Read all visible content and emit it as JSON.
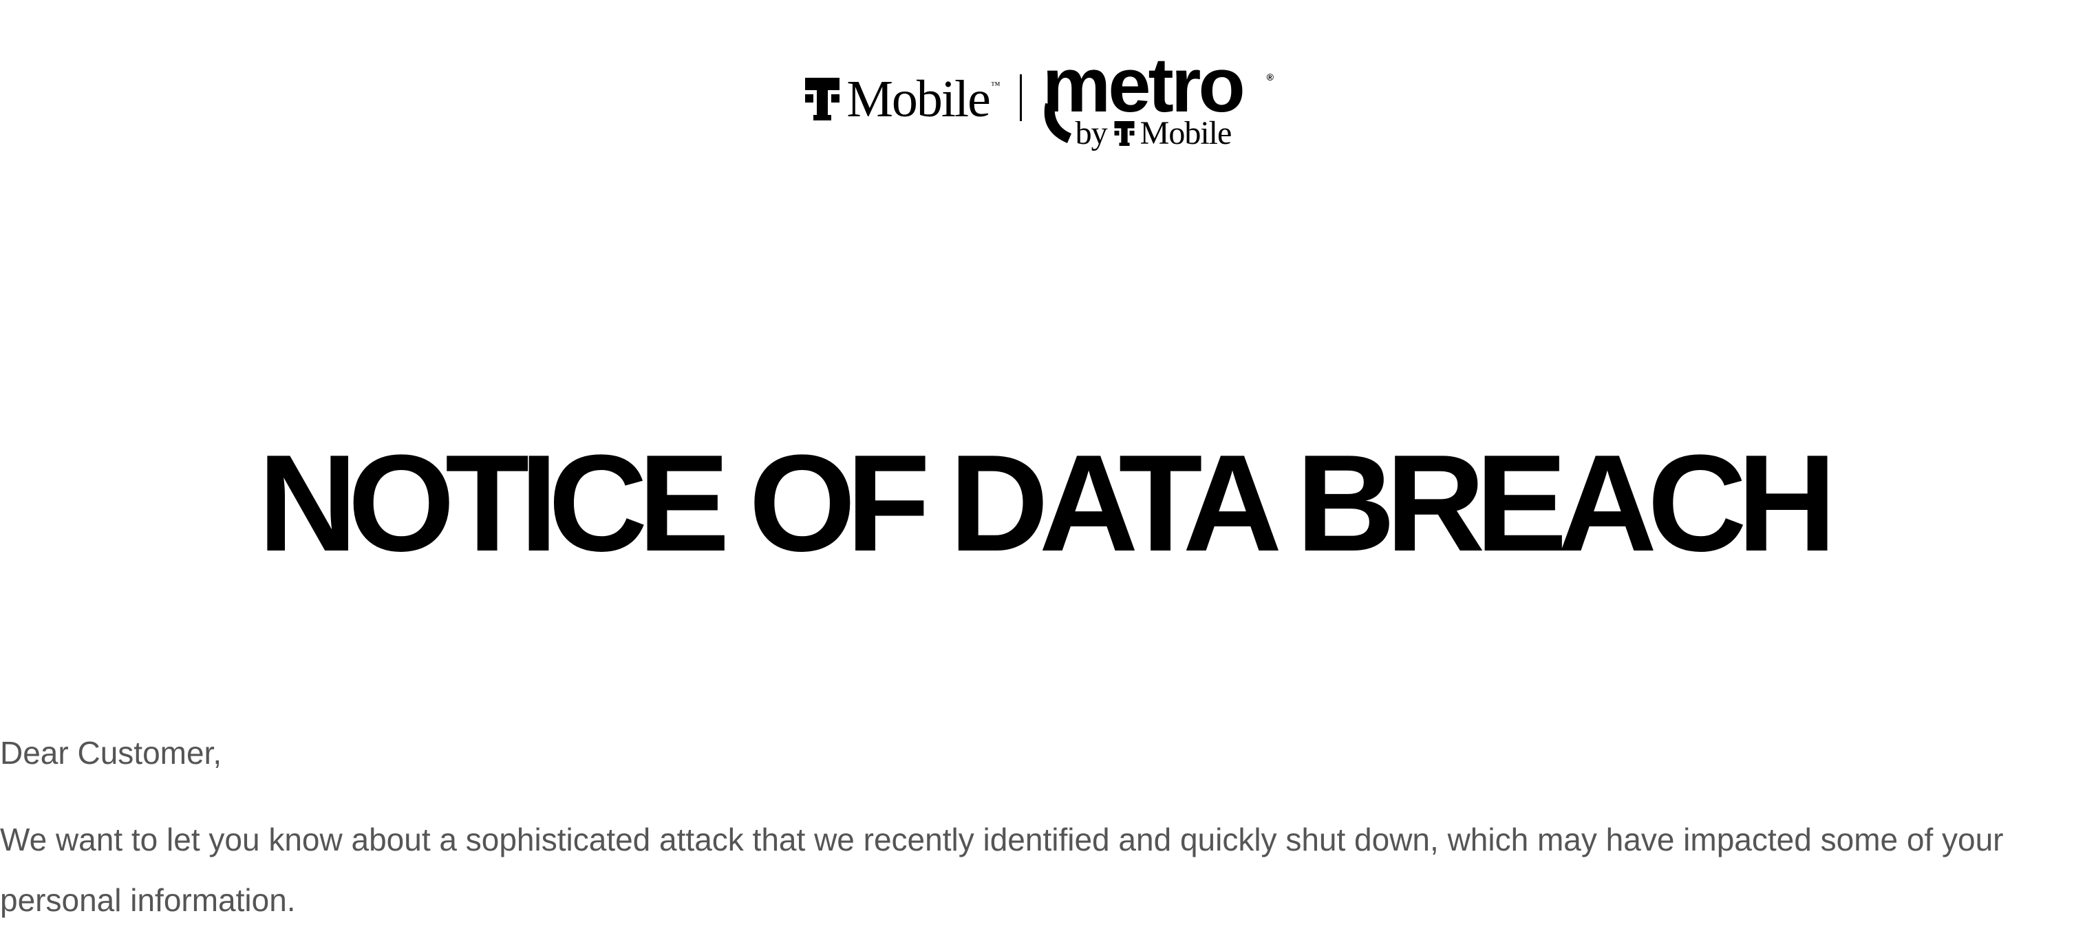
{
  "header": {
    "tmobile_logo_text": "Mobile",
    "tmobile_tm": "™",
    "metro_logo_text": "metro",
    "metro_reg": "®",
    "metro_byline_by": "by",
    "metro_byline_brand": "Mobile"
  },
  "notice": {
    "title": "NOTICE OF DATA BREACH",
    "greeting": "Dear Customer,",
    "paragraph": "We want to let you know about a sophisticated attack that we recently identified and quickly shut down, which may have impacted some of your personal information."
  },
  "colors": {
    "title": "#000000",
    "body_text": "#555555",
    "background": "#ffffff"
  },
  "icons": {
    "tmobile_mark": "t-mobile-t-icon",
    "metro_swoosh": "metro-swoosh-icon"
  }
}
